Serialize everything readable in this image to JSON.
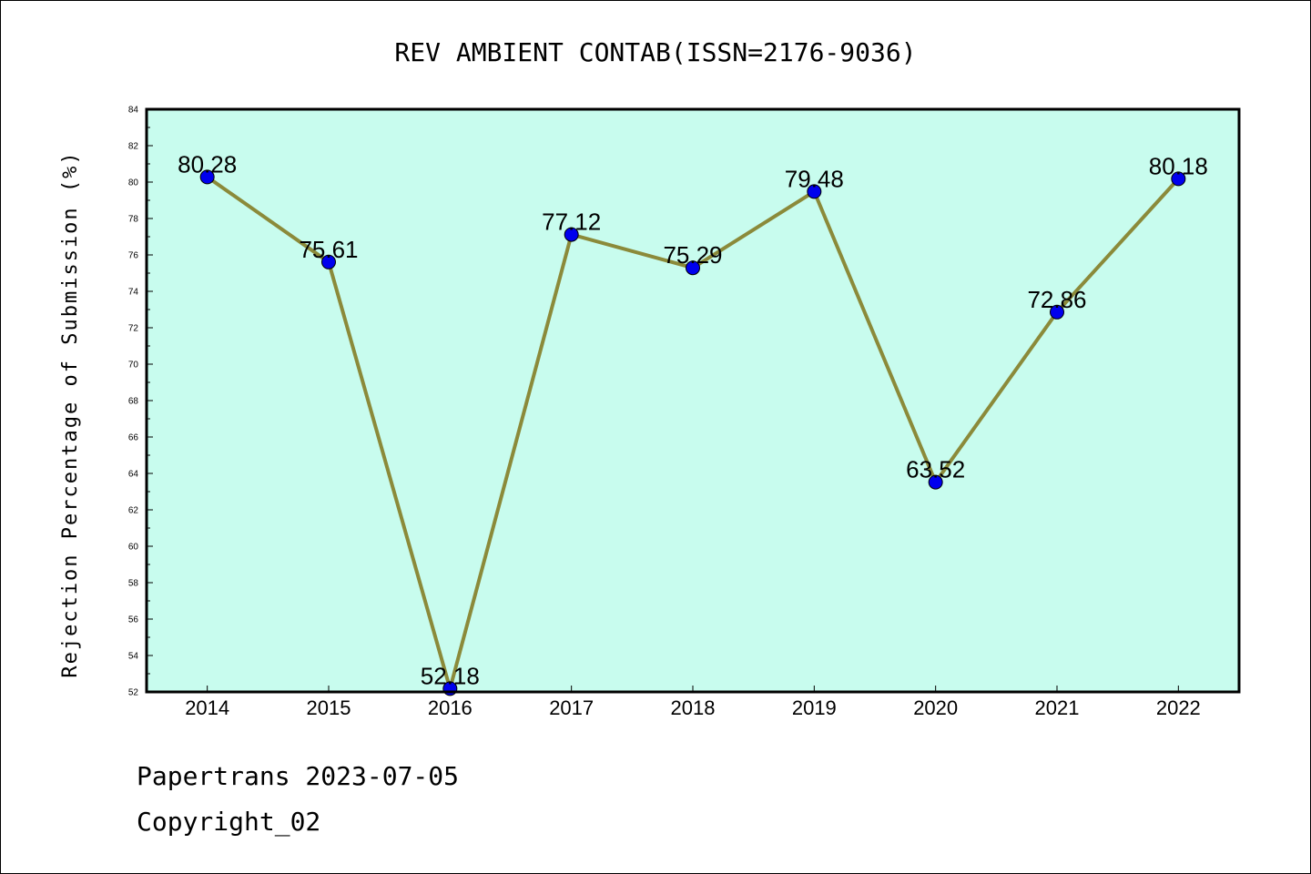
{
  "footer": {
    "line1": "Papertrans 2023-07-05",
    "line2": "Copyright_02"
  },
  "chart_data": {
    "type": "line",
    "title": "REV AMBIENT CONTAB(ISSN=2176-9036)",
    "xlabel": "",
    "ylabel": "Rejection Percentage of Submission (%)",
    "categories": [
      "2014",
      "2015",
      "2016",
      "2017",
      "2018",
      "2019",
      "2020",
      "2021",
      "2022"
    ],
    "series": [
      {
        "values": [
          80.28,
          75.61,
          52.18,
          77.12,
          75.29,
          79.48,
          63.52,
          72.86,
          80.18
        ],
        "labels": [
          "80.28",
          "75.61",
          "52.18",
          "77.12",
          "75.29",
          "79.48",
          "63.52",
          "72.86",
          "80.18"
        ]
      }
    ],
    "ylim": [
      52,
      84
    ],
    "yticks": [
      "52",
      "54",
      "56",
      "58",
      "60",
      "62",
      "64",
      "66",
      "68",
      "70",
      "72",
      "74",
      "76",
      "78",
      "80",
      "82",
      "84"
    ],
    "grid": false,
    "colors": {
      "plot_background": "#c8fcee",
      "line": "#8b8a3a",
      "marker": "#0000ee"
    }
  }
}
